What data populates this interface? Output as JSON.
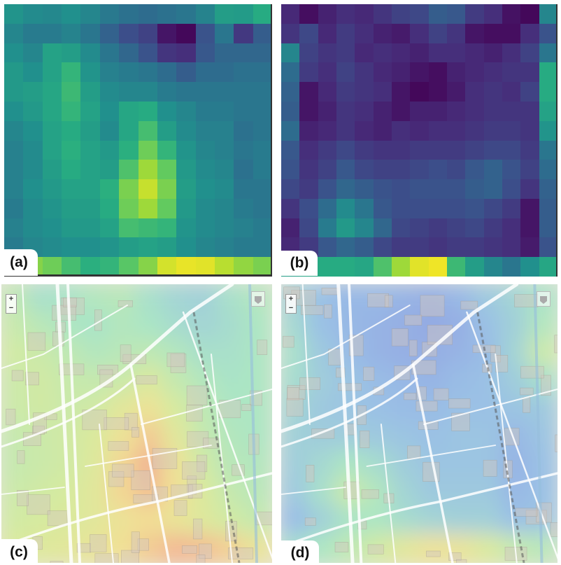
{
  "panels": [
    {
      "id": "a",
      "label": "(a)",
      "kind": "heatmap",
      "colormap": "viridis"
    },
    {
      "id": "b",
      "label": "(b)",
      "kind": "heatmap",
      "colormap": "viridis"
    },
    {
      "id": "c",
      "label": "(c)",
      "kind": "map-overlay",
      "colormap": "jet"
    },
    {
      "id": "d",
      "label": "(d)",
      "kind": "map-overlay",
      "colormap": "jet"
    }
  ],
  "heatmap_a": [
    [
      0.52,
      0.48,
      0.47,
      0.5,
      0.46,
      0.41,
      0.38,
      0.36,
      0.38,
      0.4,
      0.45,
      0.56,
      0.55,
      0.62
    ],
    [
      0.46,
      0.42,
      0.42,
      0.45,
      0.4,
      0.32,
      0.24,
      0.2,
      0.06,
      0.02,
      0.26,
      0.4,
      0.17,
      0.3
    ],
    [
      0.5,
      0.46,
      0.58,
      0.56,
      0.48,
      0.4,
      0.34,
      0.26,
      0.16,
      0.14,
      0.28,
      0.34,
      0.34,
      0.34
    ],
    [
      0.54,
      0.5,
      0.58,
      0.66,
      0.52,
      0.44,
      0.42,
      0.4,
      0.36,
      0.3,
      0.36,
      0.36,
      0.38,
      0.38
    ],
    [
      0.54,
      0.56,
      0.6,
      0.68,
      0.56,
      0.48,
      0.46,
      0.46,
      0.42,
      0.4,
      0.4,
      0.4,
      0.4,
      0.4
    ],
    [
      0.5,
      0.54,
      0.6,
      0.66,
      0.58,
      0.5,
      0.6,
      0.62,
      0.5,
      0.46,
      0.42,
      0.42,
      0.4,
      0.4
    ],
    [
      0.46,
      0.5,
      0.58,
      0.62,
      0.56,
      0.48,
      0.6,
      0.7,
      0.56,
      0.48,
      0.44,
      0.44,
      0.38,
      0.4
    ],
    [
      0.44,
      0.48,
      0.58,
      0.64,
      0.58,
      0.54,
      0.64,
      0.78,
      0.66,
      0.52,
      0.46,
      0.44,
      0.4,
      0.42
    ],
    [
      0.44,
      0.48,
      0.56,
      0.62,
      0.58,
      0.56,
      0.72,
      0.86,
      0.76,
      0.54,
      0.48,
      0.46,
      0.38,
      0.42
    ],
    [
      0.44,
      0.5,
      0.54,
      0.58,
      0.58,
      0.64,
      0.8,
      0.92,
      0.8,
      0.56,
      0.5,
      0.48,
      0.4,
      0.4
    ],
    [
      0.42,
      0.48,
      0.52,
      0.56,
      0.56,
      0.62,
      0.78,
      0.86,
      0.76,
      0.54,
      0.48,
      0.46,
      0.42,
      0.4
    ],
    [
      0.44,
      0.48,
      0.5,
      0.54,
      0.54,
      0.58,
      0.7,
      0.68,
      0.66,
      0.52,
      0.48,
      0.46,
      0.44,
      0.42
    ],
    [
      0.42,
      0.46,
      0.48,
      0.5,
      0.5,
      0.52,
      0.56,
      0.58,
      0.56,
      0.5,
      0.46,
      0.44,
      0.42,
      0.42
    ],
    [
      0.8,
      0.82,
      0.78,
      0.7,
      0.64,
      0.66,
      0.74,
      0.82,
      0.94,
      0.97,
      0.96,
      0.9,
      0.84,
      0.8
    ]
  ],
  "heatmap_b": [
    [
      0.12,
      0.04,
      0.1,
      0.14,
      0.12,
      0.16,
      0.2,
      0.22,
      0.3,
      0.28,
      0.18,
      0.14,
      0.05,
      0.02,
      0.46
    ],
    [
      0.16,
      0.22,
      0.12,
      0.18,
      0.14,
      0.1,
      0.08,
      0.14,
      0.2,
      0.16,
      0.06,
      0.04,
      0.04,
      0.14,
      0.26
    ],
    [
      0.46,
      0.2,
      0.16,
      0.18,
      0.12,
      0.14,
      0.12,
      0.1,
      0.14,
      0.14,
      0.12,
      0.1,
      0.14,
      0.2,
      0.4
    ],
    [
      0.36,
      0.18,
      0.14,
      0.2,
      0.16,
      0.12,
      0.1,
      0.06,
      0.04,
      0.1,
      0.12,
      0.14,
      0.16,
      0.16,
      0.62
    ],
    [
      0.32,
      0.06,
      0.12,
      0.18,
      0.16,
      0.14,
      0.06,
      0.02,
      0.04,
      0.08,
      0.14,
      0.16,
      0.14,
      0.2,
      0.62
    ],
    [
      0.3,
      0.06,
      0.1,
      0.16,
      0.14,
      0.1,
      0.06,
      0.1,
      0.1,
      0.12,
      0.14,
      0.16,
      0.16,
      0.16,
      0.58
    ],
    [
      0.36,
      0.1,
      0.12,
      0.16,
      0.12,
      0.1,
      0.14,
      0.12,
      0.14,
      0.14,
      0.16,
      0.18,
      0.18,
      0.16,
      0.52
    ],
    [
      0.28,
      0.14,
      0.18,
      0.22,
      0.18,
      0.16,
      0.16,
      0.18,
      0.18,
      0.18,
      0.2,
      0.22,
      0.22,
      0.18,
      0.4
    ],
    [
      0.26,
      0.16,
      0.2,
      0.28,
      0.22,
      0.2,
      0.2,
      0.22,
      0.24,
      0.22,
      0.28,
      0.32,
      0.26,
      0.2,
      0.36
    ],
    [
      0.22,
      0.18,
      0.26,
      0.34,
      0.3,
      0.26,
      0.24,
      0.26,
      0.26,
      0.26,
      0.3,
      0.32,
      0.24,
      0.16,
      0.32
    ],
    [
      0.16,
      0.24,
      0.36,
      0.48,
      0.4,
      0.28,
      0.24,
      0.24,
      0.24,
      0.24,
      0.26,
      0.22,
      0.18,
      0.06,
      0.3
    ],
    [
      0.1,
      0.22,
      0.42,
      0.54,
      0.46,
      0.34,
      0.22,
      0.2,
      0.18,
      0.2,
      0.22,
      0.18,
      0.14,
      0.06,
      0.3
    ],
    [
      0.12,
      0.18,
      0.28,
      0.34,
      0.3,
      0.22,
      0.18,
      0.18,
      0.16,
      0.18,
      0.18,
      0.16,
      0.14,
      0.08,
      0.26
    ],
    [
      0.56,
      0.6,
      0.62,
      0.62,
      0.6,
      0.72,
      0.86,
      0.96,
      0.98,
      0.68,
      0.56,
      0.46,
      0.4,
      0.5,
      0.6
    ]
  ],
  "overlay_c": [
    [
      0.52,
      0.42,
      0.44,
      0.48,
      0.5,
      0.42,
      0.36,
      0.34,
      0.42,
      0.48
    ],
    [
      0.55,
      0.5,
      0.46,
      0.44,
      0.48,
      0.45,
      0.4,
      0.36,
      0.4,
      0.46
    ],
    [
      0.58,
      0.56,
      0.52,
      0.48,
      0.5,
      0.52,
      0.48,
      0.42,
      0.42,
      0.46
    ],
    [
      0.56,
      0.58,
      0.55,
      0.54,
      0.56,
      0.62,
      0.54,
      0.48,
      0.44,
      0.46
    ],
    [
      0.56,
      0.58,
      0.56,
      0.58,
      0.66,
      0.72,
      0.6,
      0.52,
      0.46,
      0.46
    ],
    [
      0.54,
      0.56,
      0.58,
      0.62,
      0.72,
      0.82,
      0.66,
      0.54,
      0.48,
      0.46
    ],
    [
      0.54,
      0.56,
      0.58,
      0.64,
      0.78,
      0.9,
      0.72,
      0.58,
      0.5,
      0.48
    ],
    [
      0.56,
      0.58,
      0.6,
      0.66,
      0.78,
      0.86,
      0.74,
      0.62,
      0.54,
      0.5
    ],
    [
      0.58,
      0.6,
      0.62,
      0.66,
      0.72,
      0.76,
      0.7,
      0.64,
      0.58,
      0.54
    ],
    [
      0.62,
      0.64,
      0.66,
      0.7,
      0.74,
      0.82,
      0.88,
      0.86,
      0.8,
      0.7
    ]
  ],
  "overlay_d": [
    [
      0.34,
      0.26,
      0.22,
      0.22,
      0.2,
      0.18,
      0.22,
      0.3,
      0.36,
      0.44
    ],
    [
      0.38,
      0.26,
      0.22,
      0.2,
      0.18,
      0.16,
      0.18,
      0.26,
      0.34,
      0.48
    ],
    [
      0.42,
      0.3,
      0.24,
      0.2,
      0.18,
      0.18,
      0.2,
      0.24,
      0.36,
      0.56
    ],
    [
      0.4,
      0.32,
      0.28,
      0.24,
      0.22,
      0.2,
      0.24,
      0.26,
      0.32,
      0.42
    ],
    [
      0.36,
      0.3,
      0.28,
      0.26,
      0.24,
      0.24,
      0.26,
      0.26,
      0.28,
      0.3
    ],
    [
      0.34,
      0.32,
      0.32,
      0.3,
      0.28,
      0.26,
      0.28,
      0.28,
      0.22,
      0.28
    ],
    [
      0.32,
      0.38,
      0.46,
      0.4,
      0.32,
      0.28,
      0.28,
      0.28,
      0.2,
      0.26
    ],
    [
      0.3,
      0.42,
      0.56,
      0.48,
      0.36,
      0.3,
      0.3,
      0.3,
      0.22,
      0.26
    ],
    [
      0.24,
      0.34,
      0.44,
      0.46,
      0.4,
      0.36,
      0.34,
      0.34,
      0.26,
      0.28
    ],
    [
      0.4,
      0.46,
      0.52,
      0.58,
      0.66,
      0.72,
      0.7,
      0.62,
      0.54,
      0.5
    ]
  ],
  "map_controls": {
    "zoom_in": "+",
    "zoom_out": "−"
  }
}
